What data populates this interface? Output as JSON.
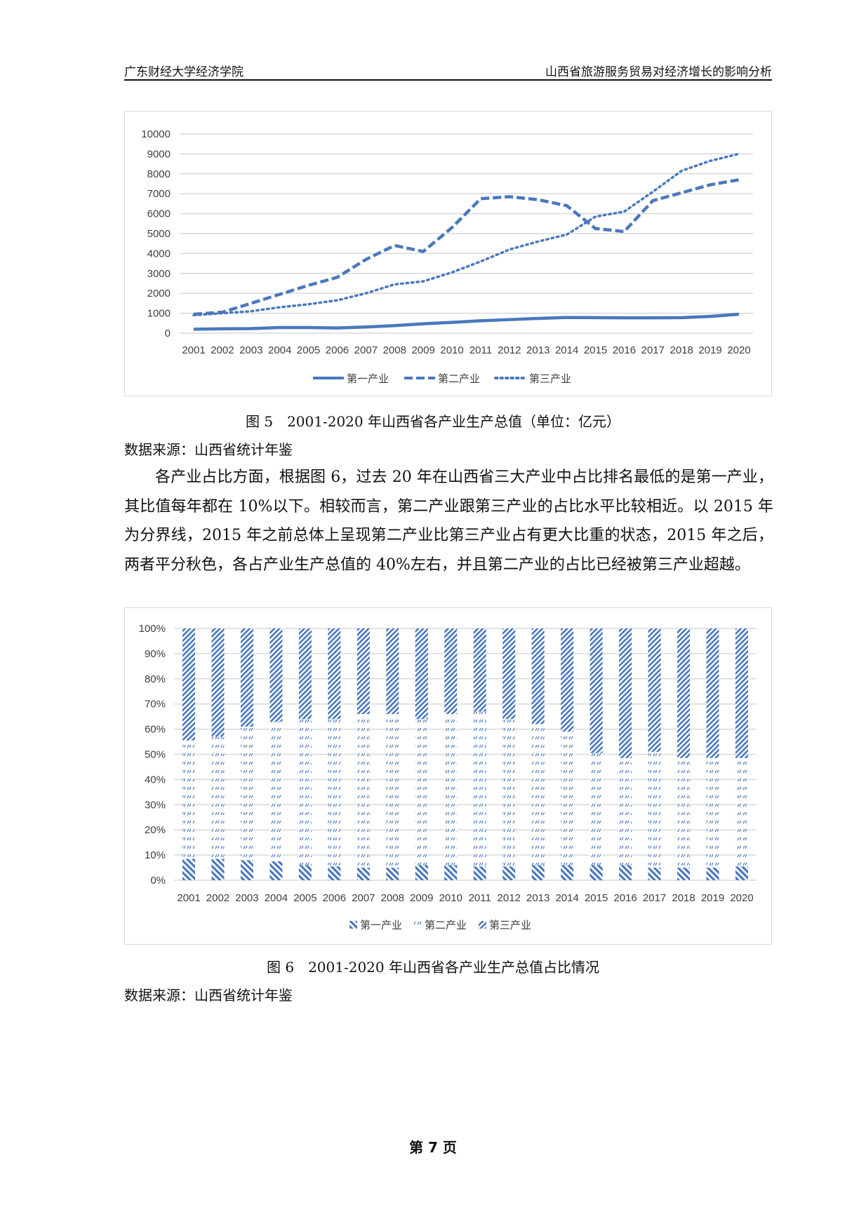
{
  "header": {
    "left": "广东财经大学经济学院",
    "right": "山西省旅游服务贸易对经济增长的影响分析"
  },
  "colors": {
    "series": "#4a78bd",
    "grid": "#d9d9d9"
  },
  "figure5": {
    "caption": "图 5　2001-2020 年山西省各产业生产总值（单位：亿元）",
    "source": "数据来源：山西省统计年鉴"
  },
  "paragraph": "各产业占比方面，根据图 6，过去 20 年在山西省三大产业中占比排名最低的是第一产业，其比值每年都在 10%以下。相较而言，第二产业跟第三产业的占比水平比较相近。以 2015 年为分界线，2015 年之前总体上呈现第二产业比第三产业占有更大比重的状态，2015 年之后，两者平分秋色，各占产业生产总值的 40%左右，并且第二产业的占比已经被第三产业超越。",
  "figure6": {
    "caption": "图 6　2001-2020 年山西省各产业生产总值占比情况",
    "source": "数据来源：山西省统计年鉴"
  },
  "footer": {
    "page": "第 7 页"
  },
  "chart_data": [
    {
      "type": "line",
      "title": "",
      "xlabel": "",
      "ylabel": "",
      "ylim": [
        0,
        10000
      ],
      "yticks": [
        "0",
        "1000",
        "2000",
        "3000",
        "4000",
        "5000",
        "6000",
        "7000",
        "8000",
        "9000",
        "10000"
      ],
      "grid": true,
      "legend": "bottom",
      "categories": [
        "2001",
        "2002",
        "2003",
        "2004",
        "2005",
        "2006",
        "2007",
        "2008",
        "2009",
        "2010",
        "2011",
        "2012",
        "2013",
        "2014",
        "2015",
        "2016",
        "2017",
        "2018",
        "2019",
        "2020"
      ],
      "series": [
        {
          "name": "第一产业",
          "style": "solid",
          "values": [
            200,
            220,
            230,
            280,
            280,
            260,
            310,
            380,
            470,
            540,
            620,
            680,
            740,
            790,
            780,
            770,
            770,
            780,
            840,
            950
          ]
        },
        {
          "name": "第二产业",
          "style": "dashed",
          "values": [
            950,
            1050,
            1500,
            1950,
            2400,
            2800,
            3700,
            4400,
            4100,
            5300,
            6750,
            6850,
            6700,
            6400,
            5250,
            5100,
            6650,
            7050,
            7450,
            7700
          ]
        },
        {
          "name": "第三产业",
          "style": "dotted",
          "values": [
            900,
            1000,
            1100,
            1300,
            1450,
            1650,
            2000,
            2450,
            2600,
            3050,
            3600,
            4200,
            4600,
            4950,
            5850,
            6100,
            7100,
            8150,
            8650,
            9000
          ]
        }
      ]
    },
    {
      "type": "bar",
      "stacked": "percent",
      "title": "",
      "xlabel": "",
      "ylabel": "",
      "ylim": [
        0,
        100
      ],
      "yticks": [
        "0%",
        "10%",
        "20%",
        "30%",
        "40%",
        "50%",
        "60%",
        "70%",
        "80%",
        "90%",
        "100%"
      ],
      "grid": true,
      "legend": "bottom",
      "categories": [
        "2001",
        "2002",
        "2003",
        "2004",
        "2005",
        "2006",
        "2007",
        "2008",
        "2009",
        "2010",
        "2011",
        "2012",
        "2013",
        "2014",
        "2015",
        "2016",
        "2017",
        "2018",
        "2019",
        "2020"
      ],
      "series": [
        {
          "name": "第一产业",
          "pattern": "wide-downward-diagonal",
          "values": [
            8.5,
            8.5,
            8,
            7.5,
            6,
            5.5,
            5,
            5,
            6,
            6,
            5.5,
            5.5,
            6,
            6,
            6,
            6,
            5,
            5,
            5,
            5.5
          ]
        },
        {
          "name": "第二产业",
          "pattern": "dashed-upward-diagonal",
          "values": [
            47,
            48.5,
            53,
            55.5,
            58,
            58.5,
            61,
            61,
            58,
            60,
            61.5,
            58.5,
            56,
            53,
            44.5,
            42.5,
            46,
            43.5,
            43.5,
            43
          ]
        },
        {
          "name": "第三产业",
          "pattern": "dark-upward-diagonal",
          "values": [
            44.5,
            43,
            39,
            37,
            36,
            36,
            34,
            34,
            36,
            34,
            33,
            36,
            38,
            41,
            49.5,
            51.5,
            49,
            51.5,
            51.5,
            51.5
          ]
        }
      ]
    }
  ]
}
